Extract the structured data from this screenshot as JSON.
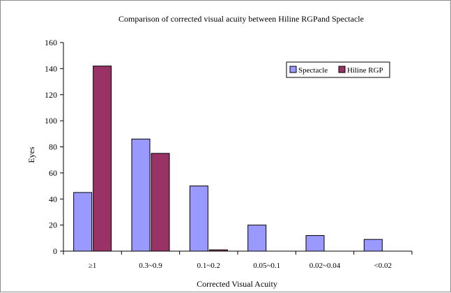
{
  "chart_data": {
    "type": "bar",
    "title": "Comparison of corrected visual acuity between Hiline RGPand Spectacle",
    "xlabel": "Corrected Visual Acuity",
    "ylabel": "Eyes",
    "categories": [
      "≥1",
      "0.3~0.9",
      "0.1~0.2",
      "0.05~0.1",
      "0.02~0.04",
      "<0.02"
    ],
    "ylim": [
      0,
      160
    ],
    "yticks": [
      0,
      20,
      40,
      60,
      80,
      100,
      120,
      140,
      160
    ],
    "grid": false,
    "legend_position": "top-right",
    "series": [
      {
        "name": "Spectacle",
        "color": "#9999ff",
        "values": [
          45,
          86,
          50,
          20,
          12,
          9
        ]
      },
      {
        "name": "Hiline RGP",
        "color": "#993366",
        "values": [
          142,
          75,
          1,
          0,
          0,
          0
        ]
      }
    ]
  }
}
